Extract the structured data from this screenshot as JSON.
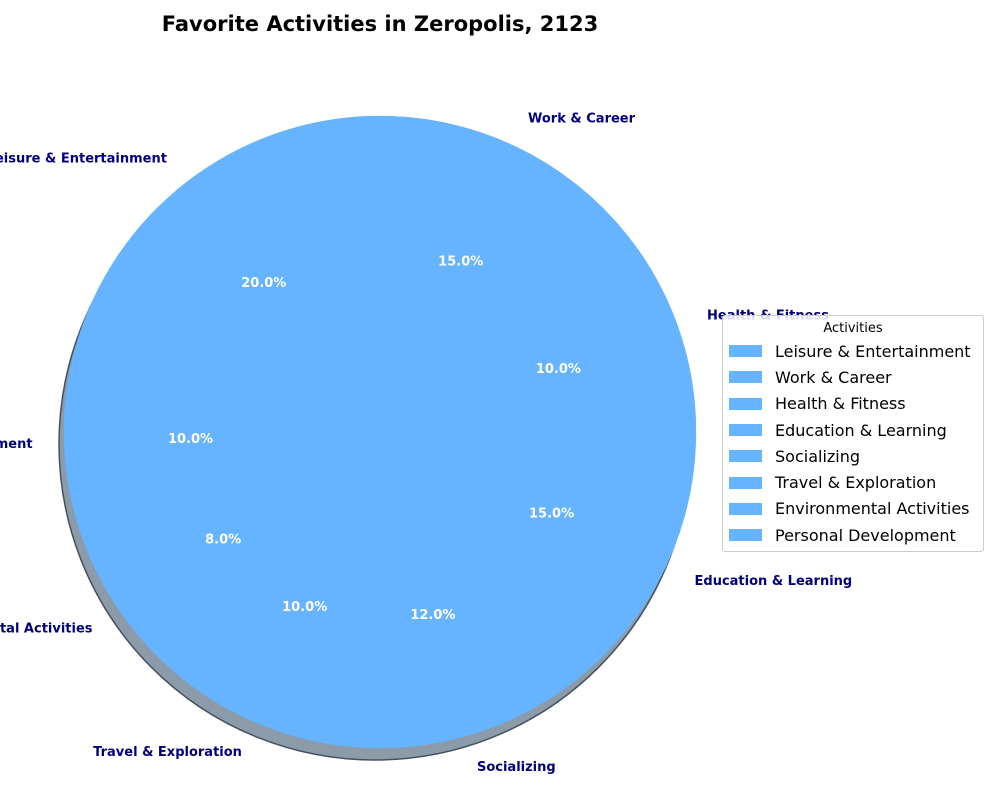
{
  "chart_data": {
    "type": "pie",
    "title": "Favorite Activities in Zeropolis, 2123",
    "categories": [
      "Leisure & Entertainment",
      "Work & Career",
      "Health & Fitness",
      "Education & Learning",
      "Socializing",
      "Travel & Exploration",
      "Environmental Activities",
      "Personal Development"
    ],
    "values": [
      20,
      15,
      10,
      15,
      12,
      10,
      8,
      10
    ],
    "percent_labels": [
      "20.0%",
      "15.0%",
      "10.0%",
      "15.0%",
      "12.0%",
      "10.0%",
      "8.0%",
      "10.0%"
    ],
    "legend": {
      "title": "Activities",
      "placement": "center-right"
    },
    "colors": {
      "slice": "#66b3ff",
      "shadow": "#8c9ba9",
      "category_label": "#00007f",
      "percent_label": "#ffffff",
      "title": "#000000"
    }
  }
}
